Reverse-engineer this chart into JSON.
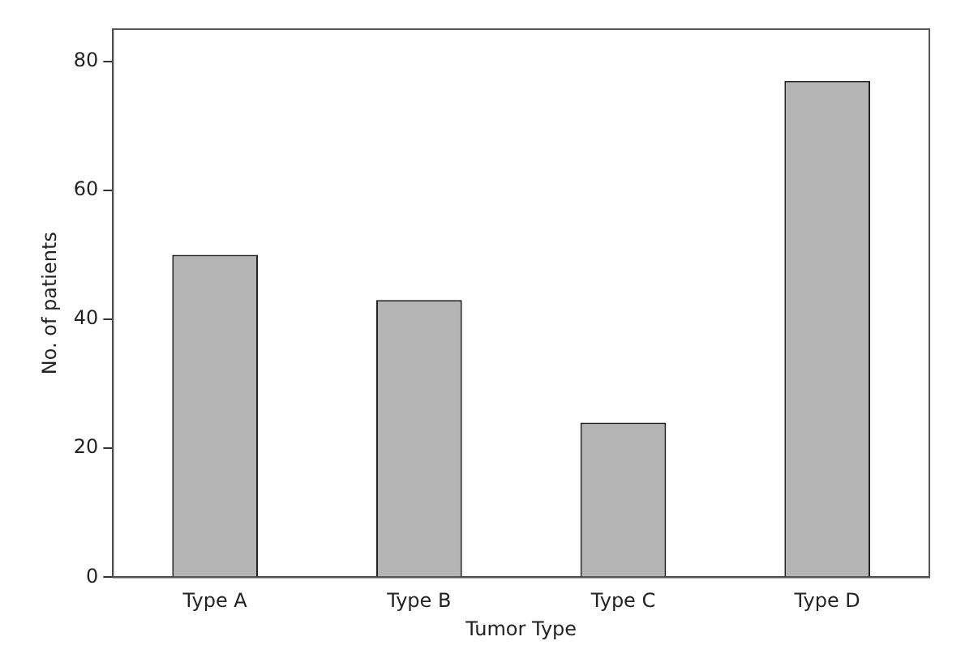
{
  "chart_data": {
    "type": "bar",
    "xlabel": "Tumor Type",
    "ylabel": "No. of patients",
    "categories": [
      "Type A",
      "Type B",
      "Type C",
      "Type D"
    ],
    "values": [
      50,
      43,
      24,
      77
    ],
    "color": "#b4b4b4",
    "ylim": [
      0,
      85
    ],
    "yticks": [
      0,
      20,
      40,
      60,
      80
    ],
    "grid": false,
    "legend": false
  }
}
